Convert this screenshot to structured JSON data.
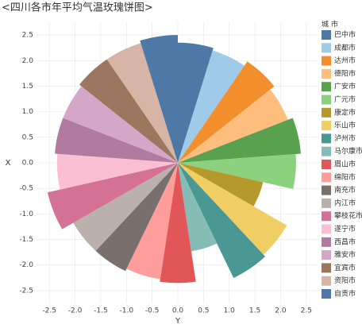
{
  "chart_data": {
    "type": "rose",
    "title": "<四川各市年平均气温玫瑰饼图>",
    "x_label": "Y",
    "y_label": "X",
    "legend_title": "城 市",
    "categories": [
      "巴中市",
      "成都市",
      "达州市",
      "德阳市",
      "广安市",
      "广元市",
      "康定市",
      "乐山市",
      "泸州市",
      "马尔康市",
      "眉山市",
      "绵阳市",
      "南充市",
      "内江市",
      "攀枝花市",
      "遂宁市",
      "西昌市",
      "雅安市",
      "宜宾市",
      "资阳市",
      "自贡市"
    ],
    "values": [
      2.35,
      2.3,
      2.4,
      2.3,
      2.4,
      2.3,
      1.7,
      2.45,
      2.5,
      1.75,
      2.35,
      2.3,
      2.35,
      2.35,
      2.6,
      2.35,
      2.4,
      2.4,
      2.45,
      2.45,
      2.5
    ],
    "colors": [
      "#4e79a7",
      "#a0cbe8",
      "#f28e2b",
      "#ffbe7d",
      "#59a14f",
      "#8cd17d",
      "#b6992d",
      "#f1ce63",
      "#499894",
      "#86bcb6",
      "#e15759",
      "#ff9d9a",
      "#79706e",
      "#bab0ac",
      "#d37295",
      "#fabfd2",
      "#b07aa1",
      "#d4a6c8",
      "#9d7660",
      "#d7b5a6",
      "#4e79a7"
    ],
    "xlim": [
      -2.75,
      2.75
    ],
    "ylim": [
      -2.75,
      2.75
    ],
    "xticks": [
      -2.5,
      {
        "value": -2,
        "label": "-2.0"
      },
      -1.5,
      {
        "value": -1,
        "label": "-1.0"
      },
      -0.5,
      {
        "value": 0,
        "label": "0.0"
      },
      0.5,
      {
        "value": 1,
        "label": "1.0"
      },
      1.5,
      {
        "value": 2,
        "label": "2.0"
      },
      2.5
    ],
    "yticks": [
      -2.5,
      {
        "value": -2,
        "label": "-2.0"
      },
      -1.5,
      {
        "value": -1,
        "label": "-1.0"
      },
      -0.5,
      {
        "value": 0,
        "label": "0.0"
      },
      0.5,
      {
        "value": 1,
        "label": "1.0"
      },
      1.5,
      {
        "value": 2,
        "label": "2.0"
      },
      2.5
    ],
    "grid": true
  }
}
